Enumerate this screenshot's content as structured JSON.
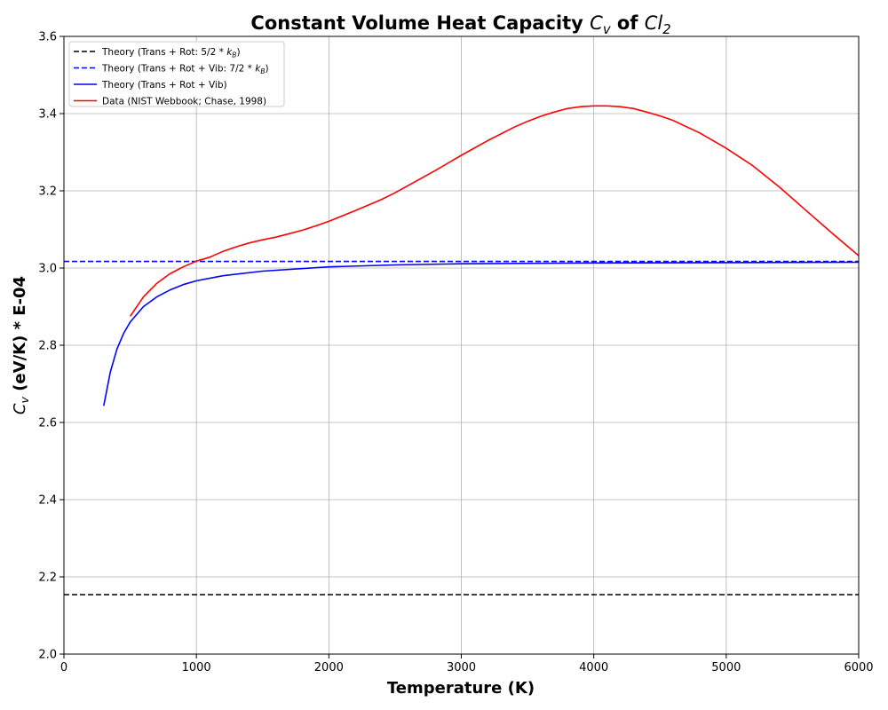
{
  "chart_data": {
    "type": "line",
    "title": {
      "prefix": "Constant Volume Heat Capacity ",
      "cv_symbol": "C",
      "cv_subscript": "v",
      "middle": " of ",
      "cl_symbol": "Cl",
      "cl_subscript": "2"
    },
    "xlabel": "Temperature (K)",
    "ylabel": {
      "symbol": "C",
      "subscript": "v",
      "rest": " (eV/K) * E-04"
    },
    "xlim": [
      0,
      6000
    ],
    "ylim": [
      2.0,
      3.6
    ],
    "x_ticks": [
      0,
      1000,
      2000,
      3000,
      4000,
      5000,
      6000
    ],
    "y_ticks": [
      2.0,
      2.2,
      2.4,
      2.6,
      2.8,
      3.0,
      3.2,
      3.4,
      3.6
    ],
    "grid": true,
    "legend_position": "top-left",
    "series": [
      {
        "name": "Theory (Trans + Rot: 5/2 * k_B)",
        "legend": {
          "text": "Theory (Trans + Rot: 5/2 * ",
          "k": "k",
          "k_sub": "B",
          "end": ")"
        },
        "color": "#000000",
        "style": "dashed",
        "x": [
          0,
          6000
        ],
        "y": [
          2.154,
          2.154
        ]
      },
      {
        "name": "Theory (Trans + Rot + Vib: 7/2 * k_B)",
        "legend": {
          "text": "Theory (Trans + Rot + Vib: 7/2 * ",
          "k": "k",
          "k_sub": "B",
          "end": ")"
        },
        "color": "#0000ff",
        "style": "dashed",
        "x": [
          0,
          6000
        ],
        "y": [
          3.017,
          3.017
        ]
      },
      {
        "name": "Theory (Trans + Rot + Vib)",
        "legend": {
          "text": "Theory (Trans + Rot + Vib)"
        },
        "color": "#0000ff",
        "style": "solid",
        "x": [
          300,
          350,
          400,
          450,
          500,
          600,
          700,
          800,
          900,
          1000,
          1200,
          1500,
          2000,
          2500,
          3000,
          4000,
          5000,
          6000
        ],
        "y": [
          2.643,
          2.73,
          2.79,
          2.83,
          2.86,
          2.9,
          2.925,
          2.943,
          2.957,
          2.967,
          2.98,
          2.992,
          3.003,
          3.008,
          3.011,
          3.013,
          3.014,
          3.015
        ]
      },
      {
        "name": "Data (NIST Webbook; Chase, 1998)",
        "legend": {
          "text": "Data (NIST Webbook; Chase, 1998)"
        },
        "color": "#ff0000",
        "style": "solid",
        "x": [
          500,
          600,
          700,
          800,
          900,
          1000,
          1100,
          1200,
          1300,
          1400,
          1500,
          1600,
          1700,
          1800,
          1900,
          2000,
          2200,
          2400,
          2500,
          2600,
          2800,
          3000,
          3200,
          3400,
          3500,
          3600,
          3700,
          3800,
          3900,
          4000,
          4100,
          4200,
          4300,
          4400,
          4500,
          4600,
          4800,
          5000,
          5200,
          5400,
          5600,
          5800,
          6000
        ],
        "y": [
          2.875,
          2.925,
          2.96,
          2.985,
          3.003,
          3.018,
          3.028,
          3.043,
          3.055,
          3.065,
          3.073,
          3.08,
          3.089,
          3.098,
          3.109,
          3.121,
          3.149,
          3.178,
          3.195,
          3.214,
          3.252,
          3.292,
          3.33,
          3.365,
          3.38,
          3.393,
          3.404,
          3.413,
          3.418,
          3.42,
          3.42,
          3.418,
          3.413,
          3.404,
          3.394,
          3.382,
          3.35,
          3.31,
          3.265,
          3.21,
          3.15,
          3.09,
          3.032
        ]
      }
    ]
  }
}
